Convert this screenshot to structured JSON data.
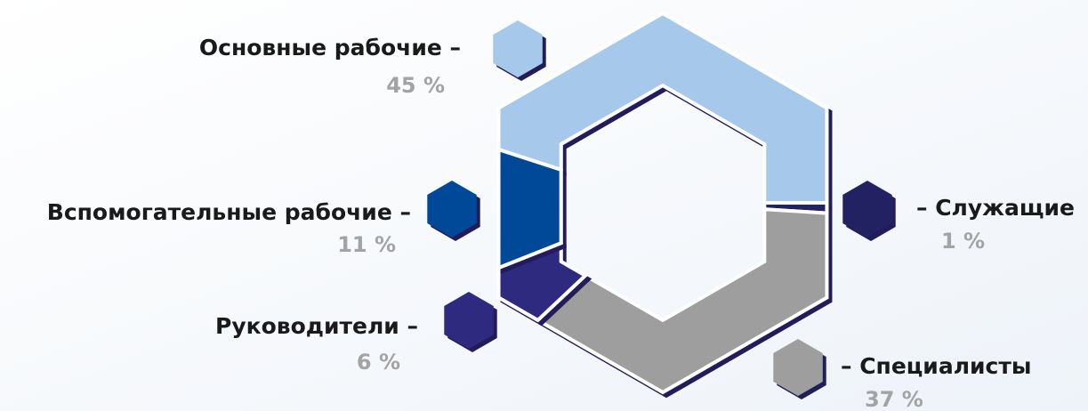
{
  "chart_data": {
    "type": "donut",
    "categories": [
      "Основные рабочие –",
      "– Служащие",
      "– Специалисты",
      "Руководители –",
      "Вспомогательные рабочие –"
    ],
    "values": [
      45,
      1,
      37,
      6,
      11
    ],
    "value_labels": [
      "45 %",
      "1 %",
      "37 %",
      "6 %",
      "11 %"
    ],
    "colors": [
      "#a6c8ea",
      "#242063",
      "#9e9e9e",
      "#2f2a80",
      "#004a98"
    ]
  }
}
